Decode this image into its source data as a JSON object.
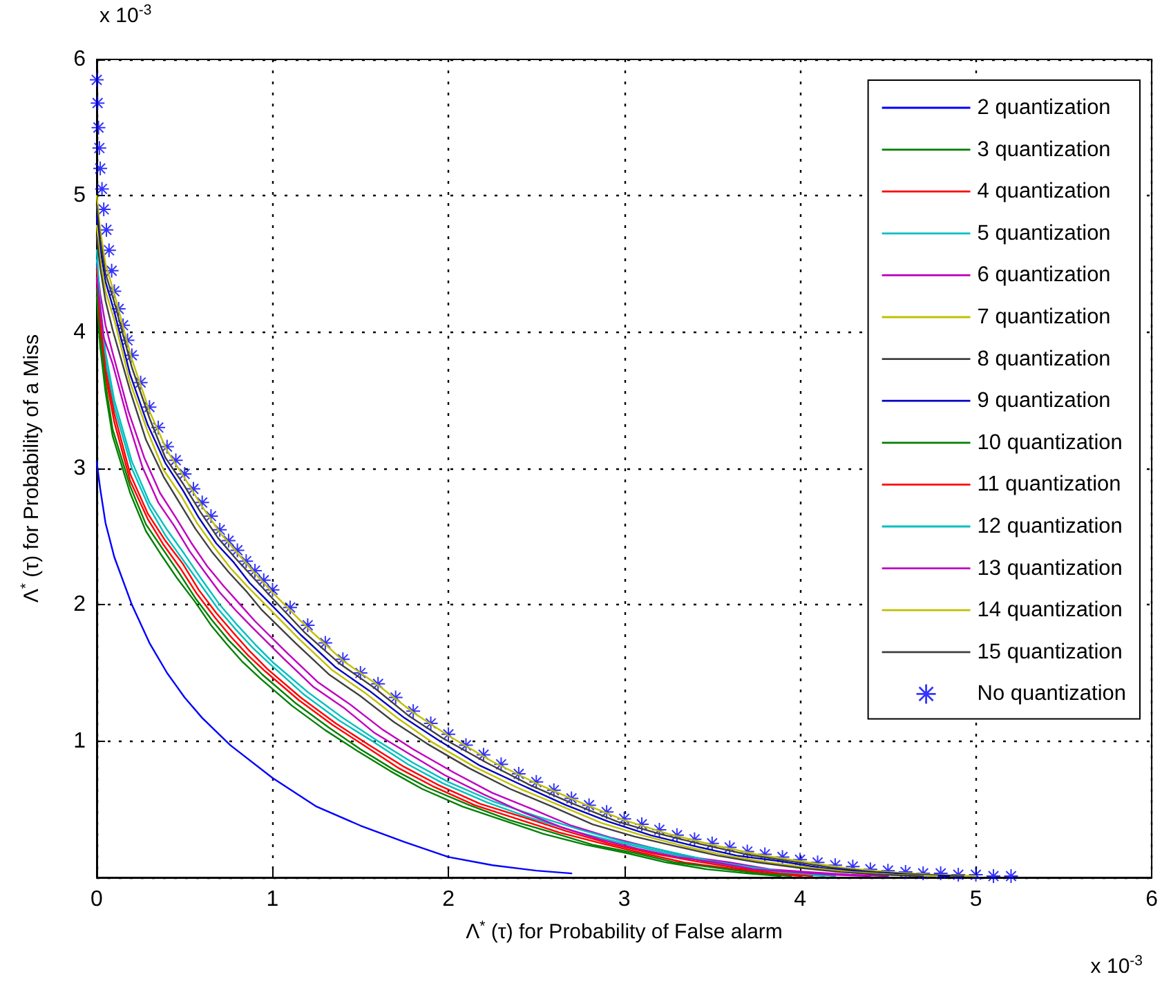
{
  "chart_data": {
    "type": "line",
    "xlabel": "Λ$^{*}$ (τ) for Probability of False alarm",
    "ylabel": "Λ$^{*}$ (τ) for Probability of a Miss",
    "annotations": [
      "x 10$^{-3}$",
      "x 10$^{-3}$"
    ],
    "xlim": [
      0,
      6
    ],
    "ylim": [
      0,
      6
    ],
    "xticks": [
      0,
      1,
      2,
      3,
      4,
      5,
      6
    ],
    "yticks": [
      {
        "value": 0,
        "label": null
      },
      1,
      2,
      3,
      4,
      5,
      6
    ],
    "grid": true,
    "legend": "top right",
    "series": [
      {
        "name": "2 quantization",
        "color": "#0000ff",
        "x": [
          0,
          0.02,
          0.05,
          0.1,
          0.2,
          0.3,
          0.4,
          0.5,
          0.6,
          0.76,
          1,
          1.25,
          1.5,
          1.75,
          2,
          2.25,
          2.5,
          2.7
        ],
        "values": [
          3.05,
          2.85,
          2.6,
          2.35,
          2.0,
          1.72,
          1.5,
          1.32,
          1.17,
          0.97,
          0.73,
          0.52,
          0.38,
          0.26,
          0.15,
          0.09,
          0.05,
          0.03
        ]
      },
      {
        "name": "3 quantization",
        "color": "#008000",
        "x": [
          0,
          0.02,
          0.05,
          0.09,
          0.19,
          0.28,
          0.37,
          0.46,
          0.56,
          0.65,
          0.74,
          0.83,
          0.93,
          1.11,
          1.3,
          1.48,
          1.67,
          1.85,
          2.08,
          2.31,
          2.54,
          2.78,
          3.01,
          3.24,
          3.47,
          3.7,
          3.89
        ],
        "values": [
          4.26,
          3.89,
          3.56,
          3.24,
          2.82,
          2.54,
          2.36,
          2.19,
          2.02,
          1.85,
          1.71,
          1.58,
          1.46,
          1.26,
          1.08,
          0.93,
          0.78,
          0.65,
          0.52,
          0.42,
          0.32,
          0.24,
          0.18,
          0.11,
          0.06,
          0.03,
          0.01
        ]
      },
      {
        "name": "4 quantization",
        "color": "#ff0000",
        "x": [
          0,
          0.02,
          0.05,
          0.1,
          0.19,
          0.29,
          0.38,
          0.48,
          0.57,
          0.67,
          0.76,
          0.86,
          0.96,
          1.15,
          1.34,
          1.53,
          1.72,
          1.91,
          2.15,
          2.39,
          2.63,
          2.87,
          3.1,
          3.34,
          3.58,
          3.82,
          4.01
        ],
        "values": [
          4.39,
          4.01,
          3.68,
          3.34,
          2.91,
          2.63,
          2.44,
          2.26,
          2.08,
          1.91,
          1.77,
          1.63,
          1.51,
          1.3,
          1.12,
          0.96,
          0.8,
          0.67,
          0.53,
          0.43,
          0.33,
          0.25,
          0.18,
          0.11,
          0.07,
          0.03,
          0.01
        ]
      },
      {
        "name": "5 quantization",
        "color": "#00bfbf",
        "x": [
          0,
          0.02,
          0.05,
          0.1,
          0.2,
          0.3,
          0.39,
          0.49,
          0.59,
          0.69,
          0.79,
          0.89,
          0.99,
          1.18,
          1.38,
          1.58,
          1.77,
          1.97,
          2.22,
          2.46,
          2.71,
          2.96,
          3.2,
          3.45,
          3.69,
          3.94,
          4.14
        ],
        "values": [
          4.53,
          4.14,
          3.79,
          3.45,
          3.0,
          2.71,
          2.51,
          2.33,
          2.15,
          1.97,
          1.82,
          1.68,
          1.56,
          1.34,
          1.15,
          0.99,
          0.83,
          0.69,
          0.55,
          0.44,
          0.34,
          0.26,
          0.19,
          0.12,
          0.07,
          0.03,
          0.01
        ]
      },
      {
        "name": "6 quantization",
        "color": "#bf00bf",
        "x": [
          0,
          0.02,
          0.05,
          0.09,
          0.18,
          0.27,
          0.36,
          0.45,
          0.54,
          0.63,
          0.72,
          0.81,
          0.9,
          1.08,
          1.26,
          1.44,
          1.62,
          1.8,
          2.03,
          2.25,
          2.48,
          2.7,
          2.93,
          3.15,
          3.38,
          3.6,
          3.83,
          4.05,
          4.28,
          4.5
        ],
        "values": [
          4.5,
          4.28,
          4.05,
          3.85,
          3.42,
          3.08,
          2.82,
          2.64,
          2.45,
          2.28,
          2.14,
          2.01,
          1.88,
          1.65,
          1.43,
          1.27,
          1.09,
          0.94,
          0.77,
          0.62,
          0.5,
          0.38,
          0.29,
          0.22,
          0.15,
          0.11,
          0.06,
          0.04,
          0.02,
          0.01
        ]
      },
      {
        "name": "7 quantization",
        "color": "#bfbf00",
        "x": [
          0,
          0.02,
          0.05,
          0.1,
          0.2,
          0.3,
          0.4,
          0.5,
          0.6,
          0.7,
          0.8,
          0.9,
          1,
          1.2,
          1.4,
          1.6,
          1.8,
          2,
          2.25,
          2.5,
          2.75,
          3,
          3.25,
          3.5,
          3.75,
          4,
          4.25,
          4.5,
          4.75,
          5
        ],
        "values": [
          5.0,
          4.75,
          4.5,
          4.28,
          3.8,
          3.42,
          3.13,
          2.93,
          2.72,
          2.53,
          2.38,
          2.23,
          2.09,
          1.83,
          1.59,
          1.41,
          1.21,
          1.04,
          0.85,
          0.69,
          0.55,
          0.42,
          0.32,
          0.24,
          0.17,
          0.12,
          0.07,
          0.04,
          0.02,
          0.01
        ]
      },
      {
        "name": "8 quantization",
        "color": "#404040",
        "x": [
          0,
          0.02,
          0.05,
          0.1,
          0.2,
          0.3,
          0.39,
          0.49,
          0.59,
          0.69,
          0.79,
          0.89,
          0.99,
          1.18,
          1.38,
          1.58,
          1.77,
          1.97,
          2.22,
          2.46,
          2.71,
          2.96,
          3.2,
          3.45,
          3.69,
          3.94,
          4.19,
          4.43,
          4.68,
          4.93
        ],
        "values": [
          4.93,
          4.68,
          4.43,
          4.22,
          3.74,
          3.37,
          3.08,
          2.89,
          2.68,
          2.49,
          2.34,
          2.2,
          2.06,
          1.8,
          1.57,
          1.39,
          1.19,
          1.02,
          0.84,
          0.68,
          0.54,
          0.41,
          0.32,
          0.24,
          0.17,
          0.12,
          0.07,
          0.04,
          0.02,
          0.01
        ]
      },
      {
        "name": "9 quantization",
        "color": "#0000bf",
        "x": [
          0,
          0.02,
          0.05,
          0.1,
          0.19,
          0.29,
          0.39,
          0.49,
          0.58,
          0.68,
          0.78,
          0.87,
          0.97,
          1.16,
          1.36,
          1.55,
          1.75,
          1.94,
          2.18,
          2.43,
          2.67,
          2.91,
          3.15,
          3.4,
          3.64,
          3.88,
          4.12,
          4.37,
          4.61,
          4.85
        ],
        "values": [
          4.85,
          4.61,
          4.37,
          4.15,
          3.69,
          3.32,
          3.04,
          2.84,
          2.64,
          2.45,
          2.31,
          2.16,
          2.03,
          1.78,
          1.54,
          1.37,
          1.17,
          1.01,
          0.82,
          0.67,
          0.53,
          0.41,
          0.31,
          0.23,
          0.16,
          0.12,
          0.07,
          0.04,
          0.02,
          0.01
        ]
      },
      {
        "name": "10 quantization",
        "color": "#008000",
        "x": [
          0,
          0.02,
          0.05,
          0.09,
          0.19,
          0.28,
          0.38,
          0.47,
          0.56,
          0.66,
          0.75,
          0.85,
          0.94,
          1.13,
          1.32,
          1.5,
          1.69,
          1.88,
          2.12,
          2.35,
          2.59,
          2.82,
          3.06,
          3.29,
          3.53,
          3.76,
          3.95
        ],
        "values": [
          4.32,
          3.95,
          3.62,
          3.29,
          2.87,
          2.59,
          2.4,
          2.23,
          2.05,
          1.88,
          1.74,
          1.61,
          1.49,
          1.28,
          1.1,
          0.94,
          0.79,
          0.66,
          0.53,
          0.42,
          0.33,
          0.24,
          0.18,
          0.11,
          0.07,
          0.03,
          0.01
        ]
      },
      {
        "name": "11 quantization",
        "color": "#ff0000",
        "x": [
          0,
          0.02,
          0.05,
          0.1,
          0.19,
          0.29,
          0.39,
          0.49,
          0.58,
          0.68,
          0.78,
          0.87,
          0.97,
          1.16,
          1.36,
          1.55,
          1.75,
          1.94,
          2.18,
          2.43,
          2.67,
          2.91,
          3.15,
          3.4,
          3.64,
          3.88,
          4.07
        ],
        "values": [
          4.46,
          4.07,
          3.73,
          3.4,
          2.96,
          2.67,
          2.47,
          2.3,
          2.11,
          1.94,
          1.79,
          1.66,
          1.53,
          1.32,
          1.13,
          0.97,
          0.81,
          0.68,
          0.54,
          0.44,
          0.34,
          0.25,
          0.18,
          0.12,
          0.07,
          0.03,
          0.01
        ]
      },
      {
        "name": "12 quantization",
        "color": "#00bfbf",
        "x": [
          0,
          0.02,
          0.05,
          0.1,
          0.2,
          0.3,
          0.4,
          0.5,
          0.6,
          0.7,
          0.8,
          0.9,
          1,
          1.2,
          1.4,
          1.6,
          1.8,
          2,
          2.25,
          2.5,
          2.75,
          3,
          3.25,
          3.5,
          3.75,
          4,
          4.2
        ],
        "values": [
          4.6,
          4.2,
          3.85,
          3.5,
          3.05,
          2.75,
          2.55,
          2.37,
          2.18,
          2.0,
          1.85,
          1.71,
          1.58,
          1.36,
          1.17,
          1.0,
          0.84,
          0.7,
          0.56,
          0.45,
          0.35,
          0.26,
          0.19,
          0.12,
          0.07,
          0.03,
          0.01
        ]
      },
      {
        "name": "13 quantization",
        "color": "#bf00bf",
        "x": [
          0,
          0.02,
          0.04,
          0.09,
          0.18,
          0.26,
          0.35,
          0.44,
          0.53,
          0.62,
          0.7,
          0.79,
          0.88,
          1.06,
          1.23,
          1.41,
          1.58,
          1.76,
          1.98,
          2.2,
          2.42,
          2.64,
          2.86,
          3.08,
          3.3,
          3.52,
          3.74,
          3.96,
          4.18,
          4.4
        ],
        "values": [
          4.4,
          4.18,
          3.96,
          3.77,
          3.34,
          3.01,
          2.75,
          2.58,
          2.39,
          2.23,
          2.09,
          1.96,
          1.84,
          1.61,
          1.4,
          1.24,
          1.06,
          0.92,
          0.75,
          0.61,
          0.48,
          0.37,
          0.28,
          0.21,
          0.15,
          0.11,
          0.06,
          0.04,
          0.02,
          0.01
        ]
      },
      {
        "name": "14 quantization",
        "color": "#bfbf00",
        "x": [
          0,
          0.02,
          0.05,
          0.1,
          0.19,
          0.29,
          0.38,
          0.48,
          0.57,
          0.67,
          0.76,
          0.86,
          0.96,
          1.15,
          1.34,
          1.53,
          1.72,
          1.91,
          2.15,
          2.39,
          2.63,
          2.87,
          3.1,
          3.34,
          3.58,
          3.82,
          4.06,
          4.3,
          4.54,
          4.78
        ],
        "values": [
          4.78,
          4.54,
          4.3,
          4.09,
          3.63,
          3.27,
          2.99,
          2.8,
          2.6,
          2.42,
          2.27,
          2.13,
          2.0,
          1.75,
          1.52,
          1.35,
          1.16,
          0.99,
          0.81,
          0.66,
          0.53,
          0.4,
          0.31,
          0.23,
          0.16,
          0.11,
          0.07,
          0.04,
          0.02,
          0.01
        ]
      },
      {
        "name": "15 quantization",
        "color": "#404040",
        "x": [
          0,
          0.02,
          0.05,
          0.09,
          0.19,
          0.28,
          0.38,
          0.47,
          0.56,
          0.66,
          0.75,
          0.85,
          0.94,
          1.13,
          1.32,
          1.5,
          1.69,
          1.88,
          2.12,
          2.35,
          2.59,
          2.82,
          3.06,
          3.29,
          3.53,
          3.76,
          4.0,
          4.23,
          4.47,
          4.7
        ],
        "values": [
          4.7,
          4.47,
          4.23,
          4.02,
          3.57,
          3.21,
          2.94,
          2.75,
          2.56,
          2.38,
          2.24,
          2.1,
          1.96,
          1.72,
          1.49,
          1.33,
          1.14,
          0.98,
          0.8,
          0.65,
          0.52,
          0.39,
          0.3,
          0.23,
          0.16,
          0.11,
          0.07,
          0.04,
          0.02,
          0.01
        ]
      },
      {
        "name": "No quantization",
        "color": "#0000ff",
        "type": "scatter",
        "marker": "star",
        "x": [
          0,
          0.005,
          0.01,
          0.015,
          0.02,
          0.03,
          0.04,
          0.055,
          0.07,
          0.085,
          0.1,
          0.125,
          0.15,
          0.175,
          0.2,
          0.25,
          0.3,
          0.35,
          0.4,
          0.45,
          0.5,
          0.55,
          0.6,
          0.65,
          0.7,
          0.75,
          0.8,
          0.85,
          0.9,
          0.95,
          1,
          1.1,
          1.2,
          1.3,
          1.4,
          1.5,
          1.6,
          1.7,
          1.8,
          1.9,
          2,
          2.1,
          2.2,
          2.3,
          2.4,
          2.5,
          2.6,
          2.7,
          2.8,
          2.9,
          3,
          3.1,
          3.2,
          3.3,
          3.4,
          3.5,
          3.6,
          3.7,
          3.8,
          3.9,
          4,
          4.1,
          4.2,
          4.3,
          4.4,
          4.5,
          4.6,
          4.7,
          4.8,
          4.9,
          5,
          5.1,
          5.2
        ],
        "values": [
          5.85,
          5.68,
          5.5,
          5.35,
          5.2,
          5.05,
          4.9,
          4.75,
          4.6,
          4.45,
          4.3,
          4.17,
          4.05,
          3.94,
          3.83,
          3.63,
          3.45,
          3.3,
          3.16,
          3.06,
          2.96,
          2.85,
          2.75,
          2.65,
          2.55,
          2.47,
          2.4,
          2.32,
          2.25,
          2.18,
          2.11,
          1.98,
          1.85,
          1.72,
          1.6,
          1.5,
          1.42,
          1.32,
          1.22,
          1.13,
          1.05,
          0.97,
          0.9,
          0.83,
          0.76,
          0.7,
          0.64,
          0.58,
          0.53,
          0.48,
          0.43,
          0.39,
          0.35,
          0.31,
          0.28,
          0.25,
          0.22,
          0.19,
          0.17,
          0.15,
          0.13,
          0.11,
          0.09,
          0.08,
          0.06,
          0.05,
          0.04,
          0.03,
          0.03,
          0.02,
          0.02,
          0.01,
          0.01
        ]
      }
    ]
  }
}
